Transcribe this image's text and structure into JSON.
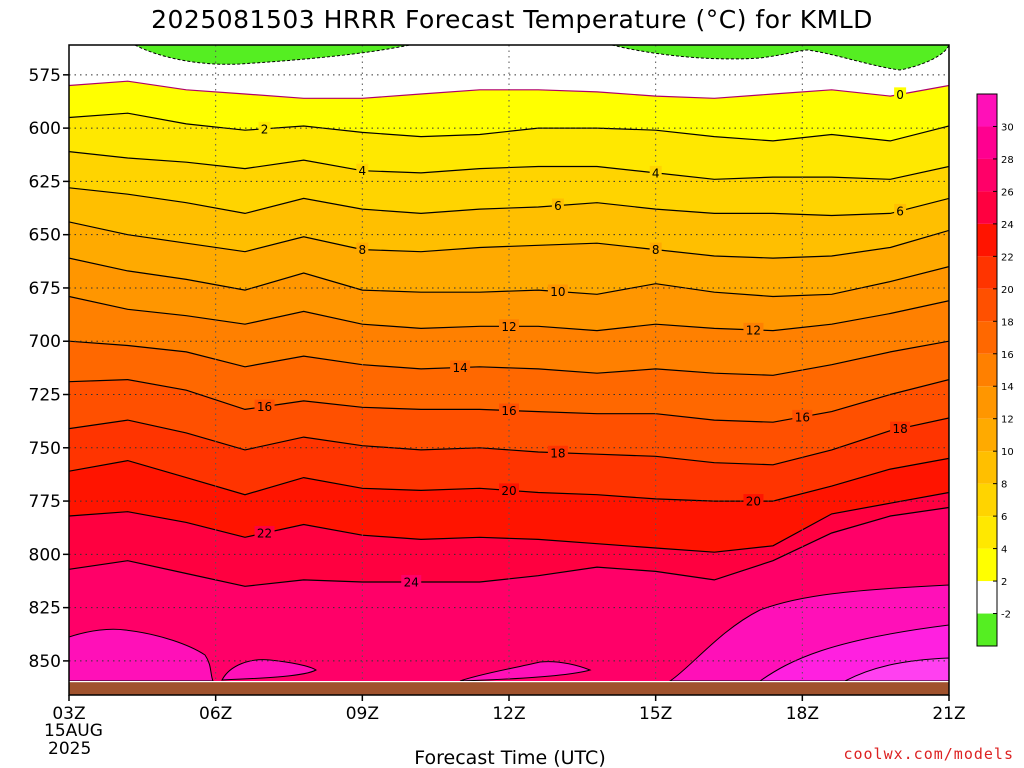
{
  "chart_data": {
    "type": "contour",
    "title": "2025081503 HRRR Forecast Temperature (°C) for KMLD",
    "xlabel": "Forecast Time (UTC)",
    "credit": "coolwx.com/models",
    "x_ticks": [
      "03Z",
      "06Z",
      "09Z",
      "12Z",
      "15Z",
      "18Z",
      "21Z"
    ],
    "x_start_date": [
      "15AUG",
      "2025"
    ],
    "y_ticks": [
      "575",
      "600",
      "625",
      "650",
      "675",
      "700",
      "725",
      "750",
      "775",
      "800",
      "825",
      "850"
    ],
    "y_tick_values": [
      575,
      600,
      625,
      650,
      675,
      700,
      725,
      750,
      775,
      800,
      825,
      850
    ],
    "y_range": [
      561,
      866
    ],
    "y_inverted": true,
    "ground_level_hpa": 860,
    "colorbar": {
      "labels": [
        "-2",
        "2",
        "4",
        "6",
        "8",
        "10",
        "12",
        "14",
        "16",
        "18",
        "20",
        "22",
        "24",
        "26",
        "28",
        "30"
      ],
      "colors": [
        "#55ee22",
        "#ffffff",
        "#ffff00",
        "#ffe800",
        "#ffd400",
        "#ffbf00",
        "#ffaa00",
        "#ff9600",
        "#ff8000",
        "#ff6800",
        "#ff5000",
        "#ff3400",
        "#ff1400",
        "#ff0040",
        "#ff0068",
        "#ff0090",
        "#ff10b8",
        "#ff20e0"
      ]
    },
    "isotherms": [
      {
        "level": 0,
        "pressure": [
          580,
          578,
          582,
          584,
          586,
          586,
          584,
          582,
          582,
          583,
          585,
          586,
          584,
          582,
          585,
          580
        ],
        "labels": [
          {
            "text": "0",
            "hour": 17.0
          }
        ]
      },
      {
        "level": 2,
        "pressure": [
          595,
          593,
          598,
          601,
          599,
          602,
          604,
          603,
          600,
          600,
          601,
          604,
          606,
          603,
          606,
          599
        ],
        "labels": [
          {
            "text": "2",
            "hour": 4.0
          }
        ]
      },
      {
        "level": 4,
        "pressure": [
          611,
          614,
          616,
          619,
          615,
          620,
          621,
          619,
          618,
          618,
          621,
          624,
          623,
          623,
          624,
          618
        ],
        "labels": [
          {
            "text": "4",
            "hour": 6.0
          },
          {
            "text": "4",
            "hour": 12.0
          }
        ]
      },
      {
        "level": 6,
        "pressure": [
          628,
          631,
          635,
          640,
          633,
          638,
          640,
          638,
          637,
          635,
          638,
          640,
          640,
          641,
          640,
          633
        ],
        "labels": [
          {
            "text": "6",
            "hour": 10.0
          },
          {
            "text": "6",
            "hour": 17.0
          }
        ]
      },
      {
        "level": 8,
        "pressure": [
          644,
          650,
          654,
          658,
          651,
          657,
          658,
          656,
          655,
          654,
          657,
          660,
          661,
          660,
          656,
          648
        ],
        "labels": [
          {
            "text": "8",
            "hour": 6.0
          },
          {
            "text": "8",
            "hour": 12.0
          }
        ]
      },
      {
        "level": 10,
        "pressure": [
          661,
          667,
          671,
          676,
          668,
          676,
          677,
          677,
          676,
          678,
          673,
          677,
          679,
          678,
          672,
          665
        ],
        "labels": [
          {
            "text": "10",
            "hour": 10.0
          }
        ]
      },
      {
        "level": 12,
        "pressure": [
          679,
          685,
          688,
          692,
          686,
          692,
          694,
          693,
          693,
          695,
          692,
          694,
          695,
          692,
          687,
          681
        ],
        "labels": [
          {
            "text": "12",
            "hour": 9.0
          },
          {
            "text": "12",
            "hour": 14.0
          }
        ]
      },
      {
        "level": 14,
        "pressure": [
          700,
          702,
          705,
          712,
          707,
          711,
          713,
          712,
          713,
          715,
          713,
          715,
          716,
          711,
          705,
          700
        ],
        "labels": [
          {
            "text": "14",
            "hour": 8.0
          }
        ]
      },
      {
        "level": 16,
        "pressure": [
          719,
          718,
          723,
          732,
          728,
          731,
          732,
          732,
          733,
          734,
          734,
          737,
          738,
          733,
          725,
          718
        ],
        "labels": [
          {
            "text": "16",
            "hour": 4.0
          },
          {
            "text": "16",
            "hour": 9.0
          },
          {
            "text": "16",
            "hour": 15.0
          }
        ]
      },
      {
        "level": 18,
        "pressure": [
          741,
          737,
          743,
          751,
          745,
          749,
          751,
          750,
          752,
          753,
          754,
          757,
          758,
          751,
          742,
          736
        ],
        "labels": [
          {
            "text": "18",
            "hour": 10.0
          },
          {
            "text": "18",
            "hour": 17.0
          }
        ]
      },
      {
        "level": 20,
        "pressure": [
          761,
          756,
          764,
          772,
          764,
          769,
          770,
          769,
          771,
          772,
          774,
          775,
          775,
          768,
          760,
          755
        ],
        "labels": [
          {
            "text": "20",
            "hour": 9.0
          },
          {
            "text": "20",
            "hour": 14.0
          }
        ]
      },
      {
        "level": 22,
        "pressure": [
          782,
          780,
          785,
          792,
          786,
          791,
          793,
          792,
          793,
          795,
          797,
          799,
          796,
          781,
          776,
          771
        ],
        "labels": [
          {
            "text": "22",
            "hour": 4.0
          }
        ]
      },
      {
        "level": 24,
        "pressure": [
          807,
          803,
          809,
          815,
          812,
          813,
          813,
          813,
          810,
          806,
          808,
          812,
          803,
          790,
          782,
          778
        ],
        "labels": [
          {
            "text": "24",
            "hour": 7.0
          }
        ]
      }
    ]
  }
}
